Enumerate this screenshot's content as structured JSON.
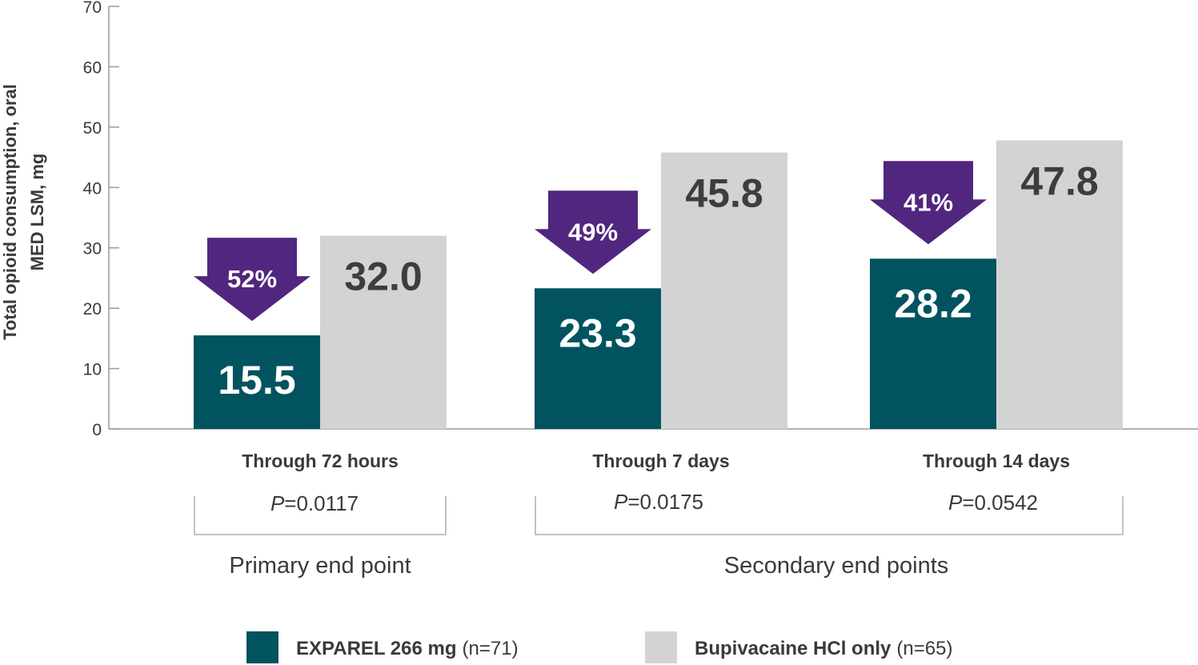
{
  "chart_data": {
    "type": "bar",
    "ylabel_line1": "Total opioid consumption, oral",
    "ylabel_line2": "MED LSM, mg",
    "ylim": [
      0,
      70
    ],
    "yticks": [
      0,
      10,
      20,
      30,
      40,
      50,
      60,
      70
    ],
    "categories": [
      "Through 72 hours",
      "Through 7 days",
      "Through 14 days"
    ],
    "series": [
      {
        "name": "EXPAREL 266 mg",
        "n_label": "(n=71)",
        "color": "#00535f",
        "label_color": "#ffffff",
        "values": [
          15.5,
          23.3,
          28.2
        ],
        "labels": [
          "15.5",
          "23.3",
          "28.2"
        ]
      },
      {
        "name": "Bupivacaine HCl only",
        "n_label": "(n=65)",
        "color": "#d3d3d3",
        "label_color": "#3d3d3d",
        "values": [
          32.0,
          45.8,
          47.8
        ],
        "labels": [
          "32.0",
          "45.8",
          "47.8"
        ]
      }
    ],
    "reductions": [
      "52%",
      "49%",
      "41%"
    ],
    "reduction_color": "#51267e",
    "p_prefix": "P",
    "p_values": [
      "=0.0117",
      "=0.0175",
      "=0.0542"
    ],
    "groups": [
      "Primary end point",
      "Secondary end points"
    ]
  }
}
